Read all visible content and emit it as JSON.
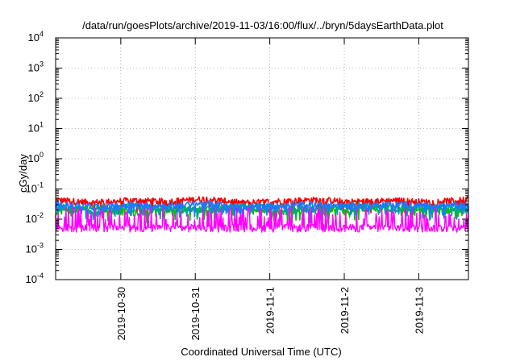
{
  "chart_data": {
    "type": "line",
    "title": "/data/run/goesPlots/archive/2019-11-03/16:00/flux/../bryn/5daysEarthData.plot",
    "xlabel": "Coordinated Universal Time (UTC)",
    "ylabel": "cGy/day",
    "y_scale": "log",
    "ylim": [
      0.0001,
      10000
    ],
    "y_ticks": [
      {
        "value": 0.0001,
        "base": "10",
        "exp": "-4"
      },
      {
        "value": 0.001,
        "base": "10",
        "exp": "-3"
      },
      {
        "value": 0.01,
        "base": "10",
        "exp": "-2"
      },
      {
        "value": 0.1,
        "base": "10",
        "exp": "-1"
      },
      {
        "value": 1,
        "base": "10",
        "exp": "0"
      },
      {
        "value": 10,
        "base": "10",
        "exp": "1"
      },
      {
        "value": 100,
        "base": "10",
        "exp": "2"
      },
      {
        "value": 1000,
        "base": "10",
        "exp": "3"
      },
      {
        "value": 10000,
        "base": "10",
        "exp": "4"
      }
    ],
    "xlim": [
      "2019-10-29 03:00",
      "2019-11-03 16:00"
    ],
    "x_ticks": [
      "2019-10-30",
      "2019-10-31",
      "2019-11-1",
      "2019-11-2",
      "2019-11-3"
    ],
    "x_tick_days": [
      1,
      2,
      3,
      4,
      5
    ],
    "grid": true,
    "series": [
      {
        "color": "#ff0000",
        "values": [
          0.042,
          0.035,
          0.041,
          0.038,
          0.046,
          0.034,
          0.039,
          0.043,
          0.037,
          0.041,
          0.036,
          0.044
        ]
      },
      {
        "color": "#00c000",
        "values": [
          0.018,
          0.024,
          0.016,
          0.021,
          0.019,
          0.026,
          0.017,
          0.022,
          0.02,
          0.025,
          0.018,
          0.021
        ]
      },
      {
        "color": "#00a0a0",
        "values": [
          0.026,
          0.019,
          0.028,
          0.023,
          0.021,
          0.027,
          0.024,
          0.02,
          0.029,
          0.022,
          0.026,
          0.023
        ]
      },
      {
        "color": "#1e78ff",
        "values": [
          0.031,
          0.025,
          0.029,
          0.027,
          0.033,
          0.024,
          0.028,
          0.03,
          0.026,
          0.032,
          0.027,
          0.029
        ]
      },
      {
        "color": "#ff00ff",
        "values": [
          0.0045,
          0.022,
          0.006,
          0.0048,
          0.021,
          0.0052,
          0.0043,
          0.024,
          0.0058,
          0.0047,
          0.02,
          0.005
        ]
      }
    ]
  }
}
